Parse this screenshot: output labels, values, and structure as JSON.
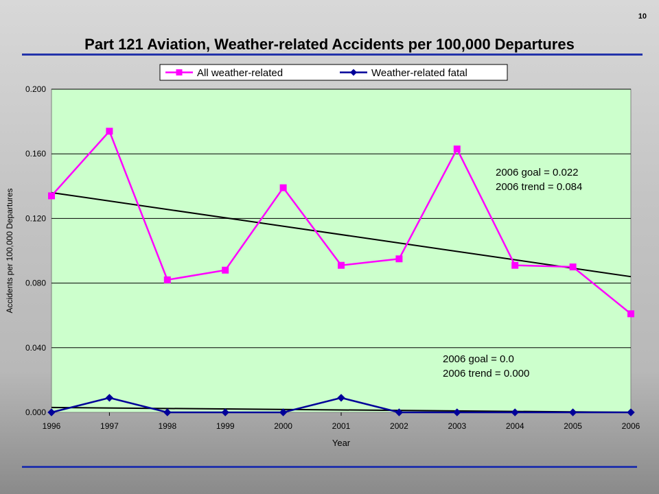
{
  "slide": {
    "page_number": "10",
    "title": "Part 121 Aviation, Weather-related Accidents per 100,000 Departures"
  },
  "colors": {
    "plot_background": "#ccffcc",
    "all_weather_series": "#ff00ff",
    "fatal_series": "#000099",
    "trend_line": "#000000",
    "rule": "#2233aa"
  },
  "chart_data": {
    "type": "line",
    "title": "Part 121 Aviation, Weather-related Accidents per 100,000 Departures",
    "xlabel": "Year",
    "ylabel": "Accidents per 100,000 Departures",
    "categories": [
      "1996",
      "1997",
      "1998",
      "1999",
      "2000",
      "2001",
      "2002",
      "2003",
      "2004",
      "2005",
      "2006"
    ],
    "ylim": [
      0,
      0.2
    ],
    "yticks": [
      "0.000",
      "0.040",
      "0.080",
      "0.120",
      "0.160",
      "0.200"
    ],
    "grid": true,
    "legend_position": "top",
    "series": [
      {
        "name": "All weather-related",
        "color": "#ff00ff",
        "marker": "square",
        "values": [
          0.134,
          0.174,
          0.082,
          0.088,
          0.139,
          0.091,
          0.095,
          0.163,
          0.091,
          0.09,
          0.061
        ]
      },
      {
        "name": "Weather-related fatal",
        "color": "#000099",
        "marker": "diamond",
        "values": [
          0.0,
          0.009,
          0.0,
          0.0,
          0.0,
          0.009,
          0.0,
          0.0,
          0.0,
          0.0,
          0.0
        ]
      }
    ],
    "trendlines": [
      {
        "start": 0.136,
        "end": 0.084
      },
      {
        "start": 0.003,
        "end": 0.0
      }
    ],
    "annotations": [
      {
        "lines": [
          "2006 goal = 0.022",
          "2006 trend = 0.084"
        ]
      },
      {
        "lines": [
          "2006 goal = 0.0",
          "2006 trend = 0.000"
        ]
      }
    ]
  }
}
